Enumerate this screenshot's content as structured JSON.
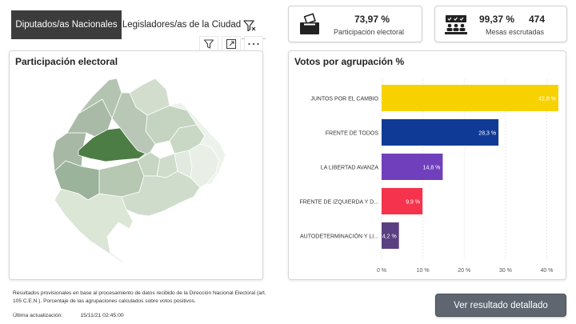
{
  "tabs": [
    {
      "label": "Diputados/as Nacionales",
      "active": true
    },
    {
      "label": "Legisladores/as de la Ciudad",
      "active": false
    }
  ],
  "kpis": {
    "participation": {
      "value": "73,97 %",
      "label": "Participación electoral",
      "icon": "ballot-box-icon"
    },
    "tables": {
      "value": "99,37 %",
      "count": "474",
      "label": "Mesas escrutadas",
      "icon": "polling-tables-icon"
    }
  },
  "map_panel": {
    "title": "Participación electoral"
  },
  "chart_panel": {
    "title": "Votos por agrupación %"
  },
  "chart_data": {
    "type": "bar",
    "orientation": "horizontal",
    "title": "Votos por agrupación %",
    "categories": [
      "JUNTOS POR EL CAMBIO",
      "FRENTE DE TODOS",
      "LA LIBERTAD AVANZA",
      "FRENTE DE IZQUIERDA Y D...",
      "AUTODETERMINACIÓN Y LI..."
    ],
    "values": [
      42.8,
      28.3,
      14.8,
      9.9,
      4.2
    ],
    "value_labels": [
      "42,8 %",
      "28,3 %",
      "14,8 %",
      "9,9 %",
      "4,2 %"
    ],
    "colors": [
      "#f8d200",
      "#0f3a96",
      "#7040bc",
      "#f5334d",
      "#5a3f82"
    ],
    "xlim": [
      0,
      43
    ],
    "xticks": [
      0,
      10,
      20,
      30,
      40
    ],
    "xtick_labels": [
      "0 %",
      "10 %",
      "20 %",
      "30 %",
      "40 %"
    ],
    "grid": true
  },
  "footer": {
    "note": "Resultados provisionales en base al procesamiento de datos recibido de la Dirección Nacional Electoral (art. 105 C.E.N.). Porcentaje de las agrupaciones calculados sobre votos positivos.",
    "update_label": "Última actualización:",
    "update_value": "15/11/21 02:45:00"
  },
  "button": {
    "label": "Ver resultado detallado"
  }
}
